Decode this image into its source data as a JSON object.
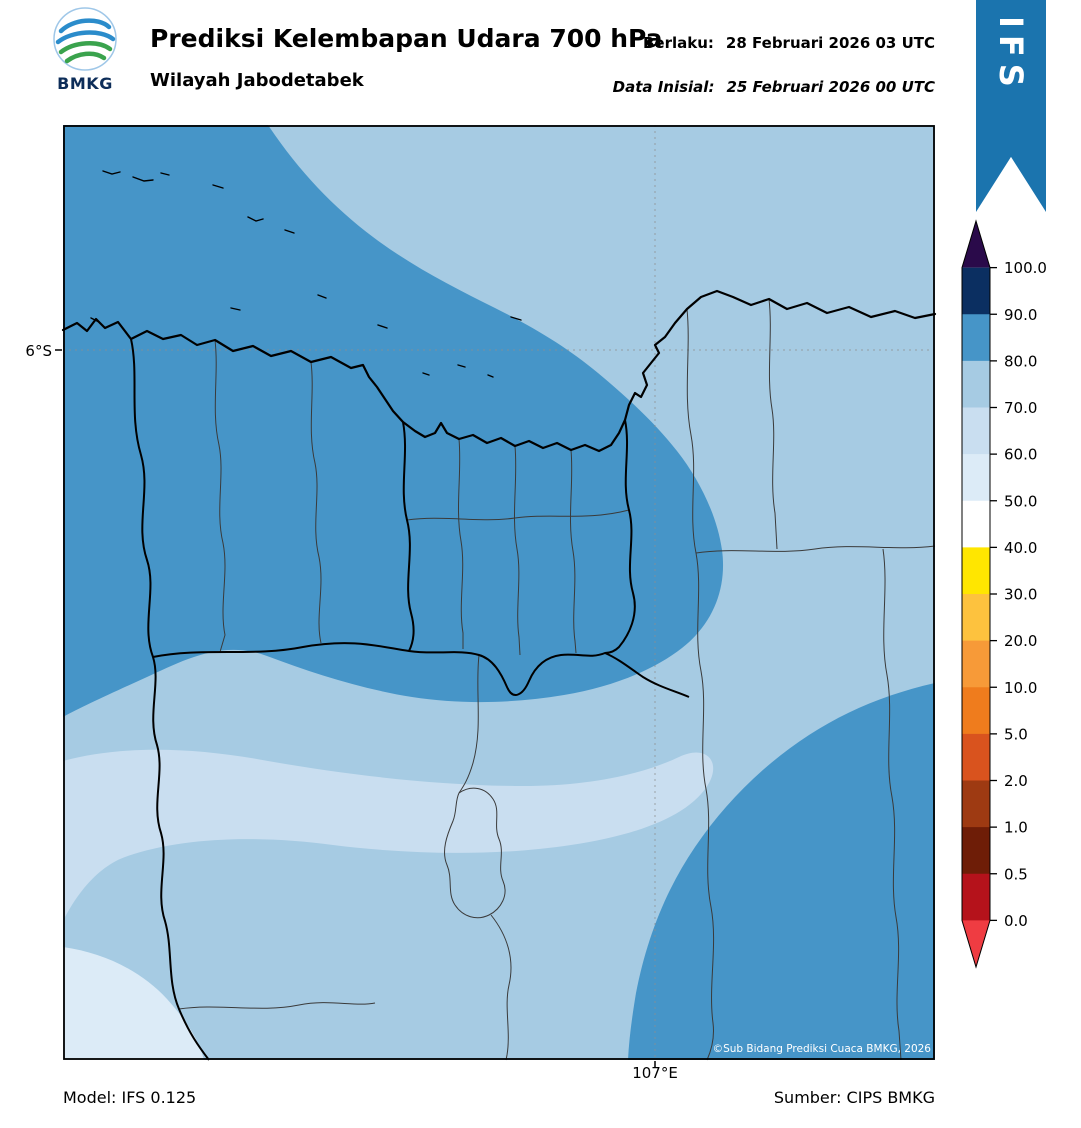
{
  "header": {
    "logo": "BMKG",
    "title": "Prediksi Kelembapan Udara 700 hPa",
    "subtitle": "Wilayah Jabodetabek",
    "valid": {
      "label": "Berlaku:",
      "value": "28 Februari 2026 03 UTC"
    },
    "initial": {
      "label": "Data Inisial:",
      "value": "25 Februari 2026 00 UTC"
    }
  },
  "ribbon": {
    "label": "IFS",
    "color": "#1b74ae"
  },
  "map": {
    "y_tick": "6°S",
    "x_tick": "107°E",
    "copyright": "©Sub Bidang Prediksi Cuaca BMKG, 2026",
    "fill_colors": {
      "rh_50_60": "#dcebf7",
      "rh_60_70": "#c9def0",
      "rh_70_80": "#a6cbe3",
      "rh_80_90": "#4695c8"
    }
  },
  "footer": {
    "model": "Model: IFS 0.125",
    "source": "Sumber: CIPS BMKG"
  },
  "chart_data": {
    "type": "heatmap",
    "title": "Prediksi Kelembapan Udara 700 hPa",
    "region": "Wilayah Jabodetabek",
    "units": "%",
    "valid_time": "28 Februari 2026 03 UTC",
    "initial_time": "25 Februari 2026 00 UTC",
    "model": "IFS 0.125",
    "source": "CIPS BMKG",
    "x_ticks": [
      "107°E"
    ],
    "y_ticks": [
      "6°S"
    ],
    "grid": "faint dashed gridlines at 6°S and 107°E",
    "legend_position": "right vertical colorbar with pointed extensions",
    "colorbar": {
      "tick_labels": [
        "100.0",
        "90.0",
        "80.0",
        "70.0",
        "60.0",
        "50.0",
        "40.0",
        "30.0",
        "20.0",
        "10.0",
        "5.0",
        "2.0",
        "1.0",
        "0.5",
        "0.0"
      ],
      "cells_top_to_bottom": [
        {
          "range": "> 100",
          "color": "#2a0a4a"
        },
        {
          "range": "90-100",
          "color": "#0b2f61"
        },
        {
          "range": "80-90",
          "color": "#4695c8"
        },
        {
          "range": "70-80",
          "color": "#a6cbe3"
        },
        {
          "range": "60-70",
          "color": "#c9def0"
        },
        {
          "range": "50-60",
          "color": "#dcebf7"
        },
        {
          "range": "40-50",
          "color": "#ffffff"
        },
        {
          "range": "30-40",
          "color": "#ffe600"
        },
        {
          "range": "20-30",
          "color": "#fdc23e"
        },
        {
          "range": "10-20",
          "color": "#f79a38"
        },
        {
          "range": "5-10",
          "color": "#ef7c1d"
        },
        {
          "range": "2-5",
          "color": "#d9531e"
        },
        {
          "range": "1-2",
          "color": "#9e3a12"
        },
        {
          "range": "0.5-1",
          "color": "#6e1d07"
        },
        {
          "range": "0-0.5",
          "color": "#b5121b"
        },
        {
          "range": "< 0",
          "color": "#ef3c42"
        }
      ]
    },
    "observed_regions": [
      {
        "value_range": "80-90 %",
        "location": "northwest quadrant (Java Sea, Kepulauan Seribu, Jakarta Bay coast) and southeast corner"
      },
      {
        "value_range": "70-80 %",
        "location": "most of the remaining domain (center, east and south)"
      },
      {
        "value_range": "60-70 %",
        "location": "west-central horizontal band below the humid northwest blob"
      },
      {
        "value_range": "50-60 %",
        "location": "southwest corner of the domain"
      }
    ]
  }
}
